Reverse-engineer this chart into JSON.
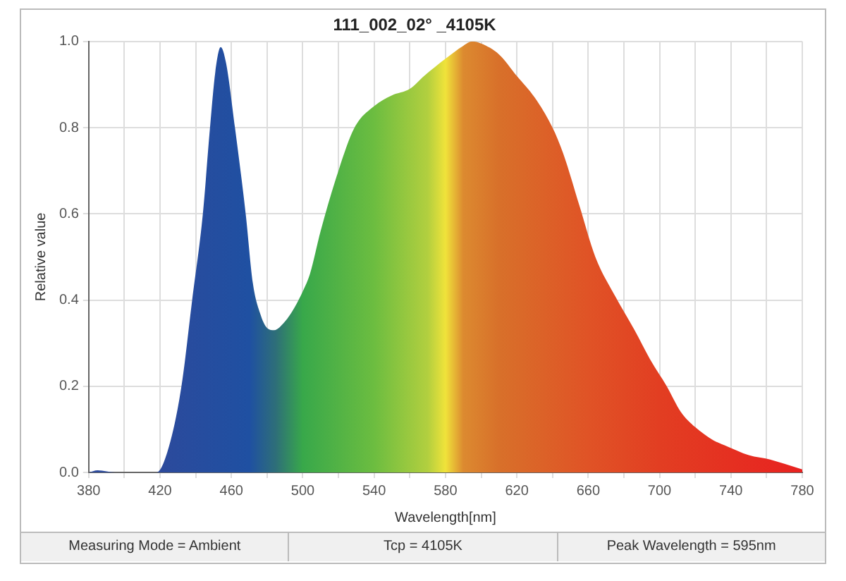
{
  "chart_data": {
    "type": "area",
    "title": "111_002_02° _4105K",
    "xlabel": "Wavelength[nm]",
    "ylabel": "Relative value",
    "x": [
      380,
      385,
      395,
      418,
      425,
      432,
      438,
      444,
      448,
      451,
      454,
      457,
      462,
      468,
      472,
      476,
      480,
      484,
      490,
      495,
      500,
      504,
      510,
      520,
      529,
      540,
      550,
      560,
      568,
      580,
      590,
      595,
      600,
      610,
      620,
      630,
      640,
      646,
      655,
      664,
      675,
      686,
      695,
      704,
      712,
      720,
      730,
      738,
      750,
      762,
      770,
      780
    ],
    "series": [
      {
        "values": [
          0,
          0.005,
          0,
          0,
          0.06,
          0.2,
          0.4,
          0.6,
          0.8,
          0.93,
          0.987,
          0.95,
          0.8,
          0.6,
          0.44,
          0.37,
          0.335,
          0.33,
          0.35,
          0.38,
          0.42,
          0.46,
          0.56,
          0.7,
          0.8,
          0.85,
          0.875,
          0.89,
          0.92,
          0.96,
          0.99,
          1.0,
          0.995,
          0.97,
          0.92,
          0.87,
          0.8,
          0.74,
          0.62,
          0.5,
          0.41,
          0.33,
          0.26,
          0.2,
          0.14,
          0.105,
          0.075,
          0.06,
          0.04,
          0.03,
          0.02,
          0.007
        ]
      }
    ],
    "xlim": [
      380,
      780
    ],
    "xticks": [
      380,
      {
        "value": 400,
        "label": null
      },
      420,
      {
        "value": 440,
        "label": null
      },
      460,
      {
        "value": 480,
        "label": null
      },
      500,
      {
        "value": 520,
        "label": null
      },
      540,
      {
        "value": 560,
        "label": null
      },
      580,
      {
        "value": 600,
        "label": null
      },
      620,
      {
        "value": 640,
        "label": null
      },
      660,
      {
        "value": 680,
        "label": null
      },
      700,
      {
        "value": 720,
        "label": null
      },
      740,
      {
        "value": 760,
        "label": null
      },
      780
    ],
    "ylim": [
      0,
      1
    ],
    "yticks": [
      {
        "value": 0,
        "label": "0.0"
      },
      {
        "value": 0.2,
        "label": "0.2"
      },
      {
        "value": 0.4,
        "label": "0.4"
      },
      {
        "value": 0.6,
        "label": "0.6"
      },
      {
        "value": 0.8,
        "label": "0.8"
      },
      {
        "value": 1,
        "label": "1.0"
      }
    ],
    "grid": true,
    "legend": false,
    "annotations": [
      "Measuring Mode = Ambient",
      "Tcp = 4105K",
      "Peak Wavelength = 595nm"
    ]
  }
}
